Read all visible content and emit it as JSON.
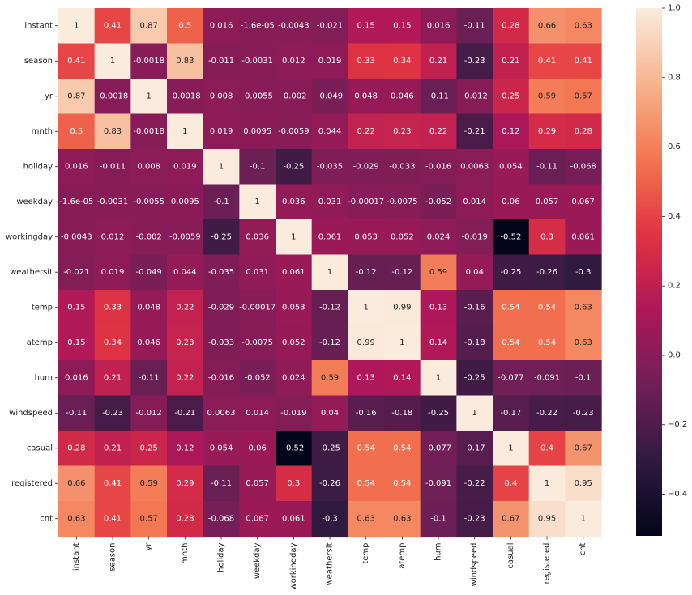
{
  "chart_data": {
    "type": "heatmap",
    "title": "",
    "xlabel": "",
    "ylabel": "",
    "labels": [
      "instant",
      "season",
      "yr",
      "mnth",
      "holiday",
      "weekday",
      "workingday",
      "weathersit",
      "temp",
      "atemp",
      "hum",
      "windspeed",
      "casual",
      "registered",
      "cnt"
    ],
    "matrix": [
      [
        1,
        0.41,
        0.87,
        0.5,
        0.016,
        -1.6e-05,
        -0.0043,
        -0.021,
        0.15,
        0.15,
        0.016,
        -0.11,
        0.28,
        0.66,
        0.63
      ],
      [
        0.41,
        1,
        -0.0018,
        0.83,
        -0.011,
        -0.0031,
        0.012,
        0.019,
        0.33,
        0.34,
        0.21,
        -0.23,
        0.21,
        0.41,
        0.41
      ],
      [
        0.87,
        -0.0018,
        1,
        -0.0018,
        0.008,
        -0.0055,
        -0.002,
        -0.049,
        0.048,
        0.046,
        -0.11,
        -0.012,
        0.25,
        0.59,
        0.57
      ],
      [
        0.5,
        0.83,
        -0.0018,
        1,
        0.019,
        0.0095,
        -0.0059,
        0.044,
        0.22,
        0.23,
        0.22,
        -0.21,
        0.12,
        0.29,
        0.28
      ],
      [
        0.016,
        -0.011,
        0.008,
        0.019,
        1,
        -0.1,
        -0.25,
        -0.035,
        -0.029,
        -0.033,
        -0.016,
        0.0063,
        0.054,
        -0.11,
        -0.068
      ],
      [
        -1.6e-05,
        -0.0031,
        -0.0055,
        0.0095,
        -0.1,
        1,
        0.036,
        0.031,
        -0.00017,
        -0.0075,
        -0.052,
        0.014,
        0.06,
        0.057,
        0.067
      ],
      [
        -0.0043,
        0.012,
        -0.002,
        -0.0059,
        -0.25,
        0.036,
        1,
        0.061,
        0.053,
        0.052,
        0.024,
        -0.019,
        -0.52,
        0.3,
        0.061
      ],
      [
        -0.021,
        0.019,
        -0.049,
        0.044,
        -0.035,
        0.031,
        0.061,
        1,
        -0.12,
        -0.12,
        0.59,
        0.04,
        -0.25,
        -0.26,
        -0.3
      ],
      [
        0.15,
        0.33,
        0.048,
        0.22,
        -0.029,
        -0.00017,
        0.053,
        -0.12,
        1,
        0.99,
        0.13,
        -0.16,
        0.54,
        0.54,
        0.63
      ],
      [
        0.15,
        0.34,
        0.046,
        0.23,
        -0.033,
        -0.0075,
        0.052,
        -0.12,
        0.99,
        1,
        0.14,
        -0.18,
        0.54,
        0.54,
        0.63
      ],
      [
        0.016,
        0.21,
        -0.11,
        0.22,
        -0.016,
        -0.052,
        0.024,
        0.59,
        0.13,
        0.14,
        1,
        -0.25,
        -0.077,
        -0.091,
        -0.1
      ],
      [
        -0.11,
        -0.23,
        -0.012,
        -0.21,
        0.0063,
        0.014,
        -0.019,
        0.04,
        -0.16,
        -0.18,
        -0.25,
        1,
        -0.17,
        -0.22,
        -0.23
      ],
      [
        0.28,
        0.21,
        0.25,
        0.12,
        0.054,
        0.06,
        -0.52,
        -0.25,
        0.54,
        0.54,
        -0.077,
        -0.17,
        1,
        0.4,
        0.67
      ],
      [
        0.66,
        0.41,
        0.59,
        0.29,
        -0.11,
        0.057,
        0.3,
        -0.26,
        0.54,
        0.54,
        -0.091,
        -0.22,
        0.4,
        1,
        0.95
      ],
      [
        0.63,
        0.41,
        0.57,
        0.28,
        -0.068,
        0.067,
        0.061,
        -0.3,
        0.63,
        0.63,
        -0.1,
        -0.23,
        0.67,
        0.95,
        1
      ]
    ],
    "annotations": [
      [
        "1",
        "0.41",
        "0.87",
        "0.5",
        "0.016",
        "-1.6e-05",
        "-0.0043",
        "-0.021",
        "0.15",
        "0.15",
        "0.016",
        "-0.11",
        "0.28",
        "0.66",
        "0.63"
      ],
      [
        "0.41",
        "1",
        "-0.0018",
        "0.83",
        "-0.011",
        "-0.0031",
        "0.012",
        "0.019",
        "0.33",
        "0.34",
        "0.21",
        "-0.23",
        "0.21",
        "0.41",
        "0.41"
      ],
      [
        "0.87",
        "-0.0018",
        "1",
        "-0.0018",
        "0.008",
        "-0.0055",
        "-0.002",
        "-0.049",
        "0.048",
        "0.046",
        "-0.11",
        "-0.012",
        "0.25",
        "0.59",
        "0.57"
      ],
      [
        "0.5",
        "0.83",
        "-0.0018",
        "1",
        "0.019",
        "0.0095",
        "-0.0059",
        "0.044",
        "0.22",
        "0.23",
        "0.22",
        "-0.21",
        "0.12",
        "0.29",
        "0.28"
      ],
      [
        "0.016",
        "-0.011",
        "0.008",
        "0.019",
        "1",
        "-0.1",
        "-0.25",
        "-0.035",
        "-0.029",
        "-0.033",
        "-0.016",
        "0.0063",
        "0.054",
        "-0.11",
        "-0.068"
      ],
      [
        "-1.6e-05",
        "-0.0031",
        "-0.0055",
        "0.0095",
        "-0.1",
        "1",
        "0.036",
        "0.031",
        "-0.00017",
        "-0.0075",
        "-0.052",
        "0.014",
        "0.06",
        "0.057",
        "0.067"
      ],
      [
        "-0.0043",
        "0.012",
        "-0.002",
        "-0.0059",
        "-0.25",
        "0.036",
        "1",
        "0.061",
        "0.053",
        "0.052",
        "0.024",
        "-0.019",
        "-0.52",
        "0.3",
        "0.061"
      ],
      [
        "-0.021",
        "0.019",
        "-0.049",
        "0.044",
        "-0.035",
        "0.031",
        "0.061",
        "1",
        "-0.12",
        "-0.12",
        "0.59",
        "0.04",
        "-0.25",
        "-0.26",
        "-0.3"
      ],
      [
        "0.15",
        "0.33",
        "0.048",
        "0.22",
        "-0.029",
        "-0.00017",
        "0.053",
        "-0.12",
        "1",
        "0.99",
        "0.13",
        "-0.16",
        "0.54",
        "0.54",
        "0.63"
      ],
      [
        "0.15",
        "0.34",
        "0.046",
        "0.23",
        "-0.033",
        "-0.0075",
        "0.052",
        "-0.12",
        "0.99",
        "1",
        "0.14",
        "-0.18",
        "0.54",
        "0.54",
        "0.63"
      ],
      [
        "0.016",
        "0.21",
        "-0.11",
        "0.22",
        "-0.016",
        "-0.052",
        "0.024",
        "0.59",
        "0.13",
        "0.14",
        "1",
        "-0.25",
        "-0.077",
        "-0.091",
        "-0.1"
      ],
      [
        "-0.11",
        "-0.23",
        "-0.012",
        "-0.21",
        "0.0063",
        "0.014",
        "-0.019",
        "0.04",
        "-0.16",
        "-0.18",
        "-0.25",
        "1",
        "-0.17",
        "-0.22",
        "-0.23"
      ],
      [
        "0.28",
        "0.21",
        "0.25",
        "0.12",
        "0.054",
        "0.06",
        "-0.52",
        "-0.25",
        "0.54",
        "0.54",
        "-0.077",
        "-0.17",
        "1",
        "0.4",
        "0.67"
      ],
      [
        "0.66",
        "0.41",
        "0.59",
        "0.29",
        "-0.11",
        "0.057",
        "0.3",
        "-0.26",
        "0.54",
        "0.54",
        "-0.091",
        "-0.22",
        "0.4",
        "1",
        "0.95"
      ],
      [
        "0.63",
        "0.41",
        "0.57",
        "0.28",
        "-0.068",
        "0.067",
        "0.061",
        "-0.3",
        "0.63",
        "0.63",
        "-0.1",
        "-0.23",
        "0.67",
        "0.95",
        "1"
      ]
    ],
    "colorbar": {
      "vmin": -0.52,
      "vmax": 1.0,
      "ticks": [
        -0.4,
        -0.2,
        0.0,
        0.2,
        0.4,
        0.6,
        0.8,
        1.0
      ],
      "tick_labels": [
        "−0.4",
        "−0.2",
        "0.0",
        "0.2",
        "0.4",
        "0.6",
        "0.8",
        "1.0"
      ]
    },
    "colormap": {
      "name": "rocket",
      "stops": [
        "#03051a",
        "#2f1a3f",
        "#701f57",
        "#ae1759",
        "#e13342",
        "#f37651",
        "#f6b48f",
        "#faebdd"
      ]
    },
    "annotation_light_text": "#ffffff",
    "annotation_dark_text": "#222222",
    "grid": false,
    "legend": "colorbar-right"
  }
}
